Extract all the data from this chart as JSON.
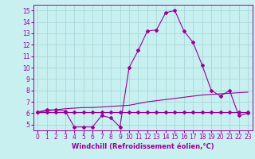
{
  "xlabel": "Windchill (Refroidissement éolien,°C)",
  "bg_color": "#c8f0f0",
  "line_color": "#990099",
  "grid_color": "#a8d8d8",
  "xlim": [
    -0.5,
    23.5
  ],
  "ylim": [
    4.5,
    15.5
  ],
  "yticks": [
    5,
    6,
    7,
    8,
    9,
    10,
    11,
    12,
    13,
    14,
    15
  ],
  "xticks": [
    0,
    1,
    2,
    3,
    4,
    5,
    6,
    7,
    8,
    9,
    10,
    11,
    12,
    13,
    14,
    15,
    16,
    17,
    18,
    19,
    20,
    21,
    22,
    23
  ],
  "main_y": [
    6.1,
    6.3,
    6.3,
    6.2,
    4.8,
    4.8,
    4.8,
    5.8,
    5.6,
    4.8,
    10.0,
    11.5,
    13.2,
    13.3,
    14.8,
    15.0,
    13.2,
    12.2,
    10.2,
    8.0,
    7.5,
    8.0,
    5.8,
    6.0
  ],
  "trend_y": [
    6.1,
    6.2,
    6.3,
    6.4,
    6.45,
    6.5,
    6.5,
    6.55,
    6.6,
    6.65,
    6.7,
    6.85,
    7.0,
    7.1,
    7.2,
    7.3,
    7.4,
    7.5,
    7.6,
    7.65,
    7.7,
    7.75,
    7.8,
    7.85
  ],
  "flat_y": [
    6.1,
    6.1,
    6.1,
    6.1,
    6.1,
    6.1,
    6.1,
    6.1,
    6.1,
    6.1,
    6.1,
    6.1,
    6.1,
    6.1,
    6.1,
    6.1,
    6.1,
    6.1,
    6.1,
    6.1,
    6.1,
    6.1,
    6.1,
    6.1
  ],
  "tick_fontsize": 5.5,
  "xlabel_fontsize": 6.0
}
